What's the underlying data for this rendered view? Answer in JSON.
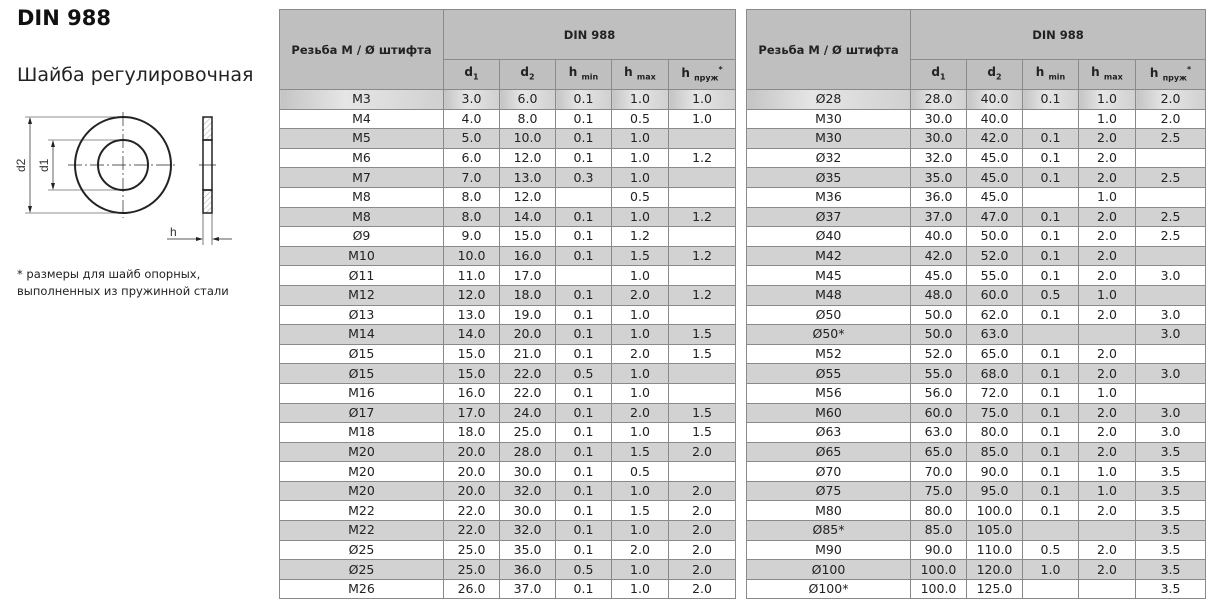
{
  "title": "DIN 988",
  "subtitle": "Шайба регулировочная",
  "footnote": [
    "* размеры для шайб опорных,",
    "выполненных из пружинной стали"
  ],
  "drawing_labels": {
    "d2": "d2",
    "d1": "d1",
    "h": "h"
  },
  "table_header": {
    "first_col": "Резьба М / Ø штифта",
    "group": "DIN 988",
    "columns": [
      {
        "base": "d",
        "sub": "1",
        "sup": ""
      },
      {
        "base": "d",
        "sub": "2",
        "sup": ""
      },
      {
        "base": "h",
        "sub": "min",
        "sup": ""
      },
      {
        "base": "h",
        "sub": "max",
        "sup": ""
      },
      {
        "base": "h",
        "sub": "пруж",
        "sup": "*"
      }
    ]
  },
  "tables": [
    [
      [
        "M3",
        "3.0",
        "6.0",
        "0.1",
        "1.0",
        "1.0"
      ],
      [
        "M4",
        "4.0",
        "8.0",
        "0.1",
        "0.5",
        "1.0"
      ],
      [
        "M5",
        "5.0",
        "10.0",
        "0.1",
        "1.0",
        ""
      ],
      [
        "M6",
        "6.0",
        "12.0",
        "0.1",
        "1.0",
        "1.2"
      ],
      [
        "M7",
        "7.0",
        "13.0",
        "0.3",
        "1.0",
        ""
      ],
      [
        "M8",
        "8.0",
        "12.0",
        "",
        "0.5",
        ""
      ],
      [
        "M8",
        "8.0",
        "14.0",
        "0.1",
        "1.0",
        "1.2"
      ],
      [
        "Ø9",
        "9.0",
        "15.0",
        "0.1",
        "1.2",
        ""
      ],
      [
        "M10",
        "10.0",
        "16.0",
        "0.1",
        "1.5",
        "1.2"
      ],
      [
        "Ø11",
        "11.0",
        "17.0",
        "",
        "1.0",
        ""
      ],
      [
        "M12",
        "12.0",
        "18.0",
        "0.1",
        "2.0",
        "1.2"
      ],
      [
        "Ø13",
        "13.0",
        "19.0",
        "0.1",
        "1.0",
        ""
      ],
      [
        "M14",
        "14.0",
        "20.0",
        "0.1",
        "1.0",
        "1.5"
      ],
      [
        "Ø15",
        "15.0",
        "21.0",
        "0.1",
        "2.0",
        "1.5"
      ],
      [
        "Ø15",
        "15.0",
        "22.0",
        "0.5",
        "1.0",
        ""
      ],
      [
        "M16",
        "16.0",
        "22.0",
        "0.1",
        "1.0",
        ""
      ],
      [
        "Ø17",
        "17.0",
        "24.0",
        "0.1",
        "2.0",
        "1.5"
      ],
      [
        "M18",
        "18.0",
        "25.0",
        "0.1",
        "1.0",
        "1.5"
      ],
      [
        "M20",
        "20.0",
        "28.0",
        "0.1",
        "1.5",
        "2.0"
      ],
      [
        "M20",
        "20.0",
        "30.0",
        "0.1",
        "0.5",
        ""
      ],
      [
        "M20",
        "20.0",
        "32.0",
        "0.1",
        "1.0",
        "2.0"
      ],
      [
        "M22",
        "22.0",
        "30.0",
        "0.1",
        "1.5",
        "2.0"
      ],
      [
        "M22",
        "22.0",
        "32.0",
        "0.1",
        "1.0",
        "2.0"
      ],
      [
        "Ø25",
        "25.0",
        "35.0",
        "0.1",
        "2.0",
        "2.0"
      ],
      [
        "Ø25",
        "25.0",
        "36.0",
        "0.5",
        "1.0",
        "2.0"
      ],
      [
        "M26",
        "26.0",
        "37.0",
        "0.1",
        "1.0",
        "2.0"
      ]
    ],
    [
      [
        "Ø28",
        "28.0",
        "40.0",
        "0.1",
        "1.0",
        "2.0"
      ],
      [
        "M30",
        "30.0",
        "40.0",
        "",
        "1.0",
        "2.0"
      ],
      [
        "M30",
        "30.0",
        "42.0",
        "0.1",
        "2.0",
        "2.5"
      ],
      [
        "Ø32",
        "32.0",
        "45.0",
        "0.1",
        "2.0",
        ""
      ],
      [
        "Ø35",
        "35.0",
        "45.0",
        "0.1",
        "2.0",
        "2.5"
      ],
      [
        "M36",
        "36.0",
        "45.0",
        "",
        "1.0",
        ""
      ],
      [
        "Ø37",
        "37.0",
        "47.0",
        "0.1",
        "2.0",
        "2.5"
      ],
      [
        "Ø40",
        "40.0",
        "50.0",
        "0.1",
        "2.0",
        "2.5"
      ],
      [
        "M42",
        "42.0",
        "52.0",
        "0.1",
        "2.0",
        ""
      ],
      [
        "M45",
        "45.0",
        "55.0",
        "0.1",
        "2.0",
        "3.0"
      ],
      [
        "M48",
        "48.0",
        "60.0",
        "0.5",
        "1.0",
        ""
      ],
      [
        "Ø50",
        "50.0",
        "62.0",
        "0.1",
        "2.0",
        "3.0"
      ],
      [
        "Ø50*",
        "50.0",
        "63.0",
        "",
        "",
        "3.0"
      ],
      [
        "M52",
        "52.0",
        "65.0",
        "0.1",
        "2.0",
        ""
      ],
      [
        "Ø55",
        "55.0",
        "68.0",
        "0.1",
        "2.0",
        "3.0"
      ],
      [
        "M56",
        "56.0",
        "72.0",
        "0.1",
        "1.0",
        ""
      ],
      [
        "M60",
        "60.0",
        "75.0",
        "0.1",
        "2.0",
        "3.0"
      ],
      [
        "Ø63",
        "63.0",
        "80.0",
        "0.1",
        "2.0",
        "3.0"
      ],
      [
        "Ø65",
        "65.0",
        "85.0",
        "0.1",
        "2.0",
        "3.5"
      ],
      [
        "Ø70",
        "70.0",
        "90.0",
        "0.1",
        "1.0",
        "3.5"
      ],
      [
        "Ø75",
        "75.0",
        "95.0",
        "0.1",
        "1.0",
        "3.5"
      ],
      [
        "M80",
        "80.0",
        "100.0",
        "0.1",
        "2.0",
        "3.5"
      ],
      [
        "Ø85*",
        "85.0",
        "105.0",
        "",
        "",
        "3.5"
      ],
      [
        "M90",
        "90.0",
        "110.0",
        "0.5",
        "2.0",
        "3.5"
      ],
      [
        "Ø100",
        "100.0",
        "120.0",
        "1.0",
        "2.0",
        "3.5"
      ],
      [
        "Ø100*",
        "100.0",
        "125.0",
        "",
        "",
        "3.5"
      ]
    ]
  ]
}
